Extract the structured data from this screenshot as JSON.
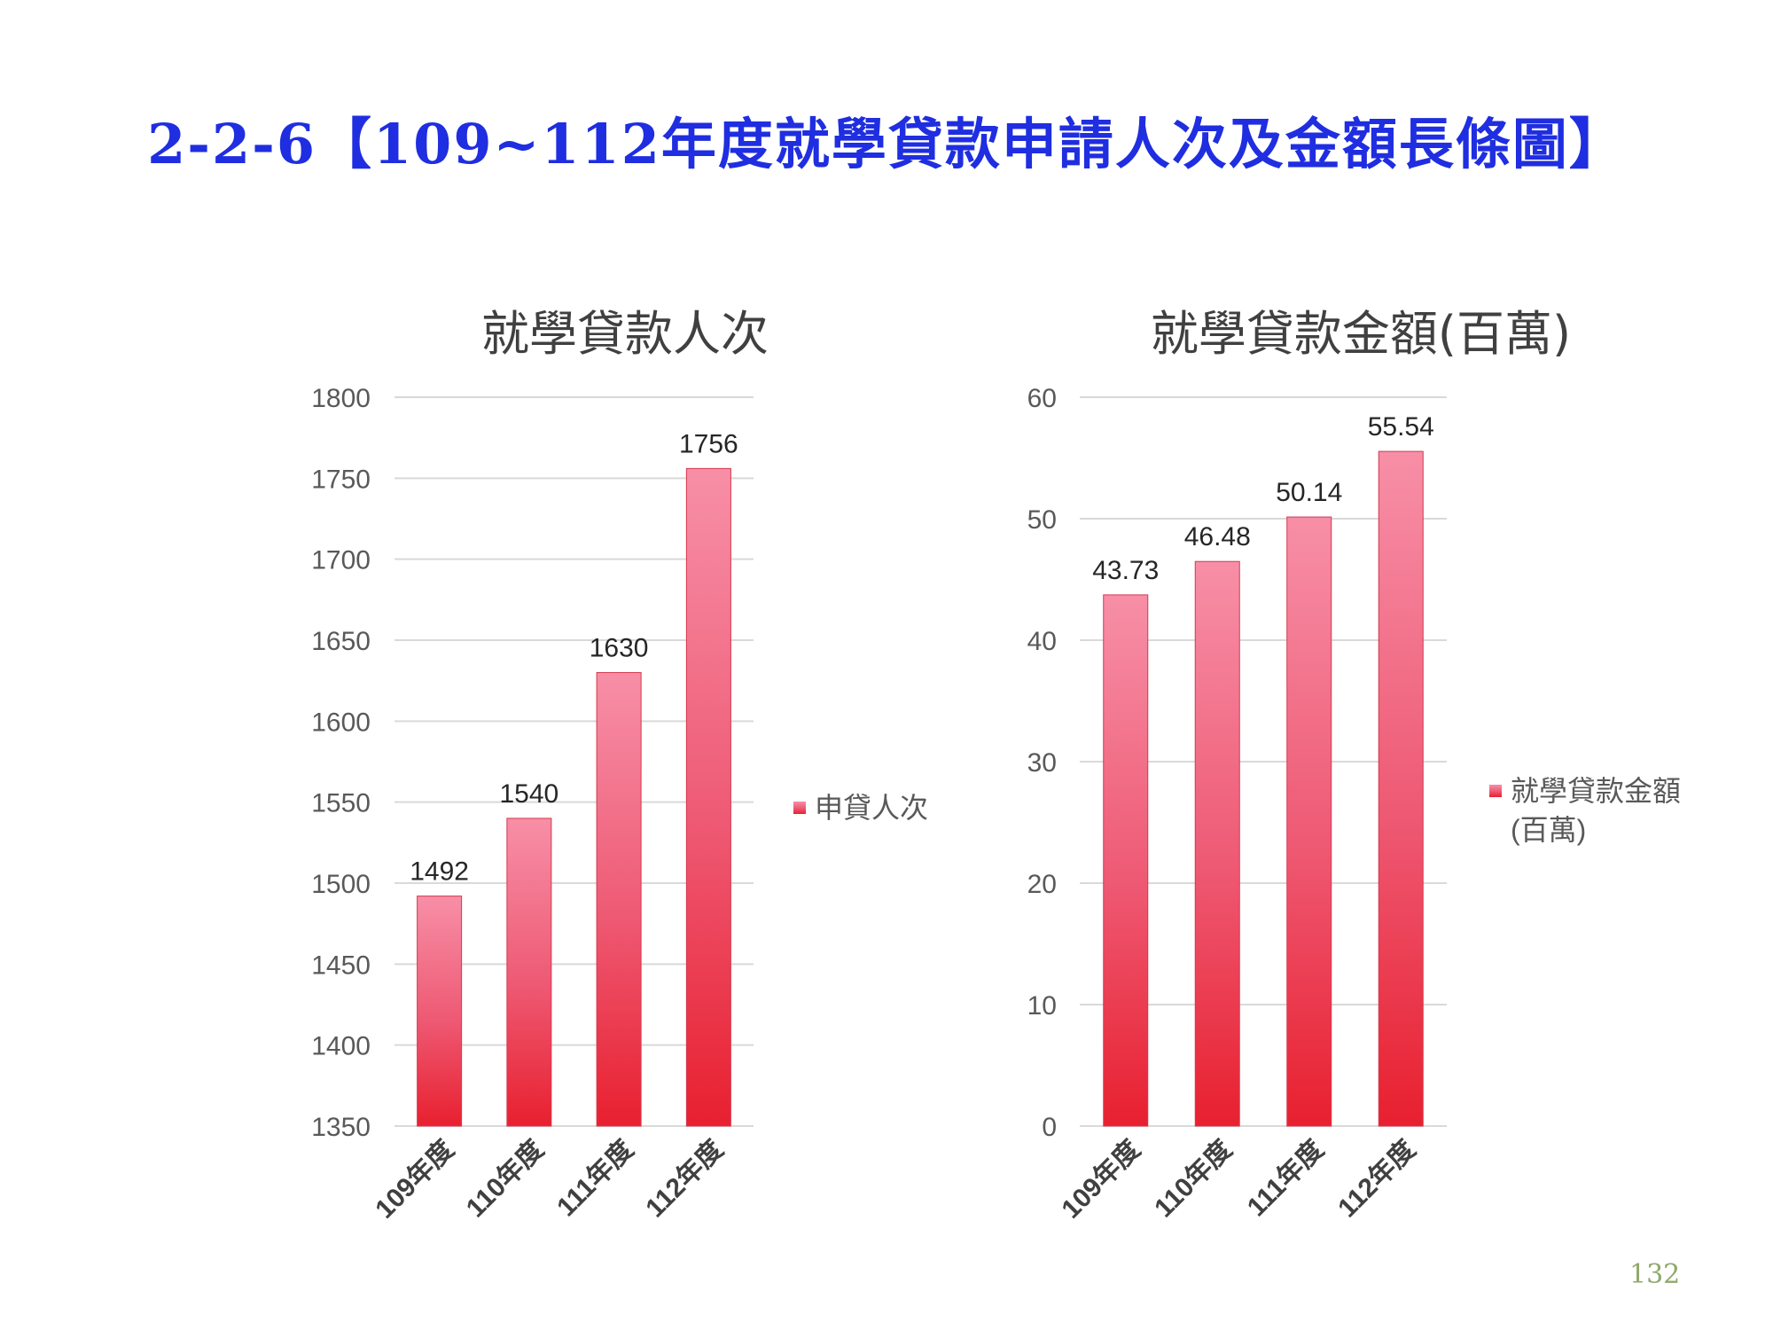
{
  "page": {
    "title": "2-2-6【109~112年度就學貸款申請人次及金額長條圖】",
    "page_number": "132"
  },
  "colors": {
    "title": "#1f2ee0",
    "bar_light": "#f78fa7",
    "bar_dark": "#e8202f",
    "gridline": "#d9d9d9",
    "axis_text": "#595959",
    "chart_title": "#404040",
    "page_number": "#8fa86a"
  },
  "chart_data": [
    {
      "type": "bar",
      "title": "就學貸款人次",
      "categories": [
        "109年度",
        "110年度",
        "111年度",
        "112年度"
      ],
      "series": [
        {
          "name": "申貸人次",
          "values": [
            1492,
            1540,
            1630,
            1756
          ]
        }
      ],
      "data_labels": [
        "1492",
        "1540",
        "1630",
        "1756"
      ],
      "ylim": [
        1350,
        1800
      ],
      "yticks": [
        1350,
        1400,
        1450,
        1500,
        1550,
        1600,
        1650,
        1700,
        1750,
        1800
      ],
      "grid": true,
      "legend_position": "right",
      "legend_lines": [
        "申貸人次"
      ]
    },
    {
      "type": "bar",
      "title": "就學貸款金額(百萬)",
      "categories": [
        "109年度",
        "110年度",
        "111年度",
        "112年度"
      ],
      "series": [
        {
          "name": "就學貸款金額(百萬)",
          "values": [
            43.73,
            46.48,
            50.14,
            55.54
          ]
        }
      ],
      "data_labels": [
        "43.73",
        "46.48",
        "50.14",
        "55.54"
      ],
      "ylim": [
        0,
        60
      ],
      "yticks": [
        0,
        10,
        20,
        30,
        40,
        50,
        60
      ],
      "grid": true,
      "legend_position": "right",
      "legend_lines": [
        "就學貸款金額",
        "(百萬)"
      ]
    }
  ]
}
